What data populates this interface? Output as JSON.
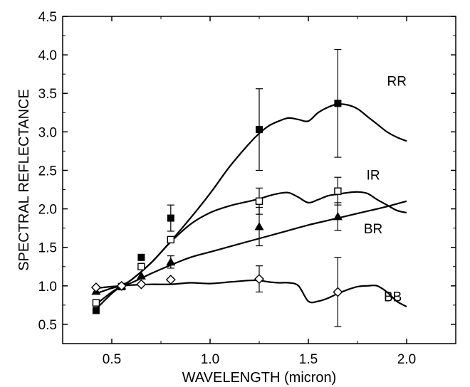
{
  "chart_data": {
    "type": "line",
    "xlabel": "WAVELENGTH (micron)",
    "ylabel": "SPECTRAL   REFLECTANCE",
    "xlim": [
      0.25,
      2.25
    ],
    "ylim": [
      0.25,
      4.5
    ],
    "xticks": [
      "0.5",
      "1.0",
      "1.5",
      "2.0"
    ],
    "yticks": [
      "0.5",
      "1.0",
      "1.5",
      "2.0",
      "2.5",
      "3.0",
      "3.5",
      "4.0",
      "4.5"
    ],
    "colors": {
      "axis": "#000000",
      "line": "#000000",
      "background": "#ffffff"
    },
    "series": [
      {
        "name": "RR",
        "marker": "filled-square",
        "points": [
          {
            "x": 0.42,
            "y": 0.68,
            "err": 0.0
          },
          {
            "x": 0.55,
            "y": 0.99,
            "err": 0.0
          },
          {
            "x": 0.65,
            "y": 1.37,
            "err": 0.0
          },
          {
            "x": 0.8,
            "y": 1.88,
            "err": 0.17
          },
          {
            "x": 1.25,
            "y": 3.03,
            "err": 0.53
          },
          {
            "x": 1.65,
            "y": 3.37,
            "err": 0.7
          }
        ],
        "curve": [
          [
            0.42,
            0.7
          ],
          [
            0.5,
            0.9
          ],
          [
            0.55,
            1.0
          ],
          [
            0.6,
            1.08
          ],
          [
            0.7,
            1.3
          ],
          [
            0.8,
            1.58
          ],
          [
            0.9,
            1.88
          ],
          [
            1.0,
            2.2
          ],
          [
            1.1,
            2.55
          ],
          [
            1.2,
            2.85
          ],
          [
            1.25,
            2.98
          ],
          [
            1.3,
            3.08
          ],
          [
            1.35,
            3.14
          ],
          [
            1.4,
            3.18
          ],
          [
            1.45,
            3.16
          ],
          [
            1.5,
            3.14
          ],
          [
            1.55,
            3.25
          ],
          [
            1.6,
            3.32
          ],
          [
            1.65,
            3.36
          ],
          [
            1.7,
            3.35
          ],
          [
            1.75,
            3.3
          ],
          [
            1.8,
            3.2
          ],
          [
            1.85,
            3.1
          ],
          [
            1.9,
            3.0
          ],
          [
            1.95,
            2.93
          ],
          [
            2.0,
            2.88
          ]
        ]
      },
      {
        "name": "IR",
        "marker": "open-square",
        "points": [
          {
            "x": 0.42,
            "y": 0.78,
            "err": 0.0
          },
          {
            "x": 0.55,
            "y": 0.99,
            "err": 0.0
          },
          {
            "x": 0.65,
            "y": 1.25,
            "err": 0.0
          },
          {
            "x": 0.8,
            "y": 1.6,
            "err": 0.0
          },
          {
            "x": 1.25,
            "y": 2.1,
            "err": 0.17
          },
          {
            "x": 1.65,
            "y": 2.23,
            "err": 0.18
          }
        ],
        "curve": [
          [
            0.42,
            0.76
          ],
          [
            0.5,
            0.92
          ],
          [
            0.55,
            1.0
          ],
          [
            0.6,
            1.08
          ],
          [
            0.7,
            1.3
          ],
          [
            0.8,
            1.57
          ],
          [
            0.9,
            1.8
          ],
          [
            1.0,
            1.95
          ],
          [
            1.1,
            2.04
          ],
          [
            1.2,
            2.1
          ],
          [
            1.25,
            2.13
          ],
          [
            1.3,
            2.17
          ],
          [
            1.35,
            2.2
          ],
          [
            1.4,
            2.21
          ],
          [
            1.45,
            2.15
          ],
          [
            1.5,
            2.08
          ],
          [
            1.55,
            2.12
          ],
          [
            1.6,
            2.17
          ],
          [
            1.65,
            2.19
          ],
          [
            1.7,
            2.21
          ],
          [
            1.75,
            2.22
          ],
          [
            1.8,
            2.2
          ],
          [
            1.85,
            2.12
          ],
          [
            1.9,
            2.05
          ],
          [
            1.95,
            1.98
          ],
          [
            2.0,
            1.95
          ]
        ]
      },
      {
        "name": "BR",
        "marker": "filled-triangle",
        "points": [
          {
            "x": 0.42,
            "y": 0.93,
            "err": 0.0
          },
          {
            "x": 0.55,
            "y": 1.0,
            "err": 0.0
          },
          {
            "x": 0.65,
            "y": 1.13,
            "err": 0.0
          },
          {
            "x": 0.8,
            "y": 1.31,
            "err": 0.08
          },
          {
            "x": 1.25,
            "y": 1.77,
            "err": 0.25
          },
          {
            "x": 1.65,
            "y": 1.9,
            "err": 0.18
          }
        ],
        "curve": [
          [
            0.42,
            0.9
          ],
          [
            0.5,
            0.97
          ],
          [
            0.55,
            1.0
          ],
          [
            0.6,
            1.04
          ],
          [
            0.7,
            1.16
          ],
          [
            0.8,
            1.27
          ],
          [
            0.9,
            1.37
          ],
          [
            1.0,
            1.44
          ],
          [
            1.1,
            1.51
          ],
          [
            1.2,
            1.58
          ],
          [
            1.3,
            1.65
          ],
          [
            1.4,
            1.72
          ],
          [
            1.5,
            1.79
          ],
          [
            1.6,
            1.85
          ],
          [
            1.7,
            1.91
          ],
          [
            1.8,
            1.97
          ],
          [
            1.9,
            2.03
          ],
          [
            2.0,
            2.1
          ]
        ]
      },
      {
        "name": "BB",
        "marker": "open-diamond",
        "points": [
          {
            "x": 0.42,
            "y": 0.98,
            "err": 0.0
          },
          {
            "x": 0.55,
            "y": 1.0,
            "err": 0.0
          },
          {
            "x": 0.65,
            "y": 1.02,
            "err": 0.0
          },
          {
            "x": 0.8,
            "y": 1.08,
            "err": 0.0
          },
          {
            "x": 1.25,
            "y": 1.09,
            "err": 0.17
          },
          {
            "x": 1.65,
            "y": 0.92,
            "err": 0.45
          }
        ],
        "curve": [
          [
            0.42,
            0.97
          ],
          [
            0.5,
            0.99
          ],
          [
            0.55,
            1.0
          ],
          [
            0.6,
            1.01
          ],
          [
            0.7,
            1.02
          ],
          [
            0.8,
            1.02
          ],
          [
            0.9,
            1.04
          ],
          [
            1.0,
            1.03
          ],
          [
            1.1,
            1.05
          ],
          [
            1.2,
            1.07
          ],
          [
            1.25,
            1.07
          ],
          [
            1.3,
            1.05
          ],
          [
            1.35,
            1.04
          ],
          [
            1.4,
            1.04
          ],
          [
            1.45,
            1.0
          ],
          [
            1.5,
            0.8
          ],
          [
            1.55,
            0.8
          ],
          [
            1.6,
            0.84
          ],
          [
            1.65,
            0.9
          ],
          [
            1.7,
            0.95
          ],
          [
            1.75,
            0.99
          ],
          [
            1.8,
            1.0
          ],
          [
            1.85,
            1.0
          ],
          [
            1.9,
            0.92
          ],
          [
            1.95,
            0.8
          ],
          [
            2.0,
            0.73
          ]
        ]
      }
    ]
  }
}
